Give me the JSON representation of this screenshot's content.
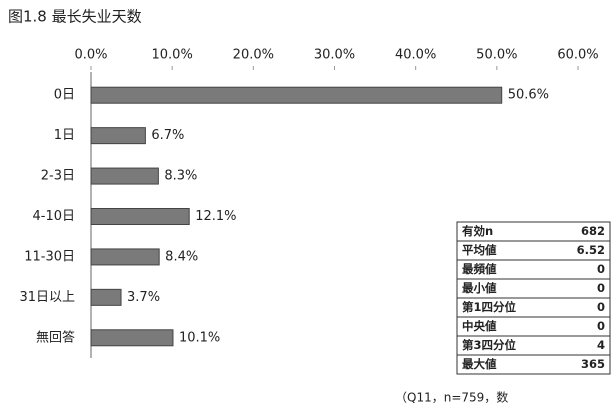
{
  "chart_data": {
    "type": "bar",
    "orientation": "horizontal",
    "title": "图1.8  最长失业天数",
    "categories": [
      "0日",
      "1日",
      "2-3日",
      "4-10日",
      "11-30日",
      "31日以上",
      "無回答"
    ],
    "values": [
      50.6,
      6.7,
      8.3,
      12.1,
      8.4,
      3.7,
      10.1
    ],
    "value_labels": [
      "50.6%",
      "6.7%",
      "8.3%",
      "12.1%",
      "8.4%",
      "3.7%",
      "10.1%"
    ],
    "color": "#7a7a7a",
    "xlim": [
      0,
      60
    ],
    "xticks": [
      {
        "value": 0,
        "label": "0.0%"
      },
      {
        "value": 10,
        "label": "10.0%"
      },
      {
        "value": 20,
        "label": "20.0%"
      },
      {
        "value": 30,
        "label": "30.0%"
      },
      {
        "value": 40,
        "label": "40.0%"
      },
      {
        "value": 50,
        "label": "50.0%"
      },
      {
        "value": 60,
        "label": "60.0%"
      }
    ],
    "grid": false
  },
  "stats_table": {
    "rows": [
      [
        "有効n",
        "682"
      ],
      [
        "平均値",
        "6.52"
      ],
      [
        "最頻値",
        "0"
      ],
      [
        "最小値",
        "0"
      ],
      [
        "第1四分位",
        "0"
      ],
      [
        "中央値",
        "0"
      ],
      [
        "第3四分位",
        "4"
      ],
      [
        "最大値",
        "365"
      ]
    ]
  },
  "footnote": "（Q11，n=759，数"
}
